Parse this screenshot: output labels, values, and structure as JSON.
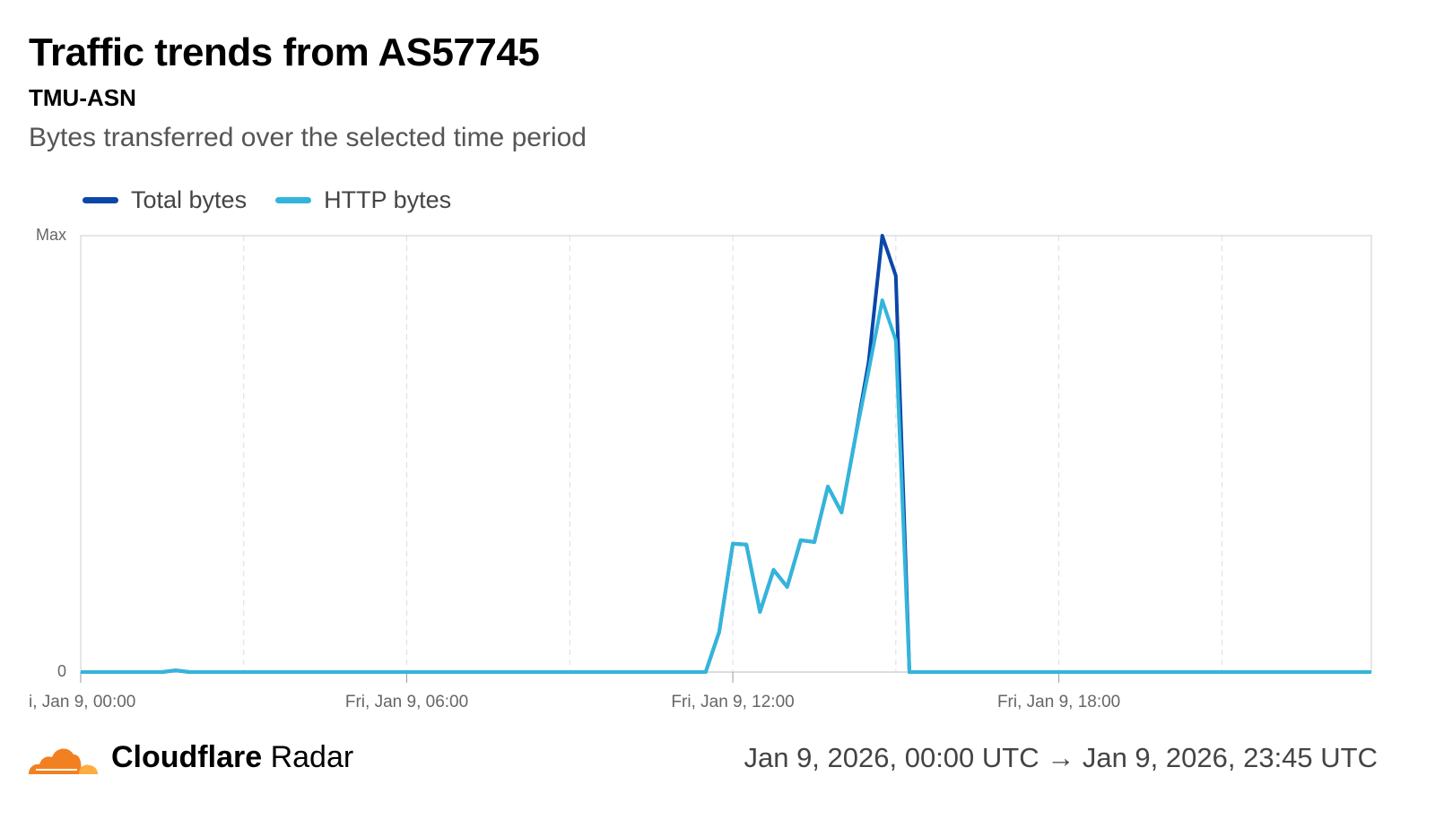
{
  "header": {
    "title": "Traffic trends from AS57745",
    "subtitle": "TMU-ASN",
    "description": "Bytes transferred over the selected time period"
  },
  "legend": [
    {
      "label": "Total bytes",
      "color": "#0a47a8"
    },
    {
      "label": "HTTP bytes",
      "color": "#33b5db"
    }
  ],
  "footer": {
    "brand_bold": "Cloudflare",
    "brand_light": "Radar",
    "range": "Jan 9, 2026, 00:00 UTC → Jan 9, 2026, 23:45 UTC"
  },
  "chart_data": {
    "type": "line",
    "title": "Traffic trends from AS57745",
    "xlabel": "",
    "ylabel": "",
    "y_tick_labels": [
      "0",
      "Max"
    ],
    "ylim": [
      0,
      1
    ],
    "x_interval_minutes": 15,
    "x_count": 96,
    "x_tick_labels": [
      {
        "index": 0,
        "label": "i, Jan 9, 00:00"
      },
      {
        "index": 24,
        "label": "Fri, Jan 9, 06:00"
      },
      {
        "index": 48,
        "label": "Fri, Jan 9, 12:00"
      },
      {
        "index": 72,
        "label": "Fri, Jan 9, 18:00"
      }
    ],
    "grid_indices": [
      12,
      24,
      36,
      48,
      60,
      72,
      84
    ],
    "series": [
      {
        "name": "Total bytes",
        "color": "#0a47a8",
        "nonzero": {
          "7": 0.004,
          "47": 0.092,
          "48": 0.294,
          "49": 0.292,
          "50": 0.138,
          "51": 0.234,
          "52": 0.195,
          "53": 0.302,
          "54": 0.298,
          "55": 0.425,
          "56": 0.366,
          "57": 0.534,
          "58": 0.71,
          "59": 1.0,
          "60": 0.908
        }
      },
      {
        "name": "HTTP bytes",
        "color": "#33b5db",
        "nonzero": {
          "7": 0.004,
          "47": 0.092,
          "48": 0.294,
          "49": 0.292,
          "50": 0.138,
          "51": 0.234,
          "52": 0.195,
          "53": 0.302,
          "54": 0.298,
          "55": 0.425,
          "56": 0.366,
          "57": 0.534,
          "58": 0.69,
          "59": 0.852,
          "60": 0.76
        }
      }
    ]
  }
}
